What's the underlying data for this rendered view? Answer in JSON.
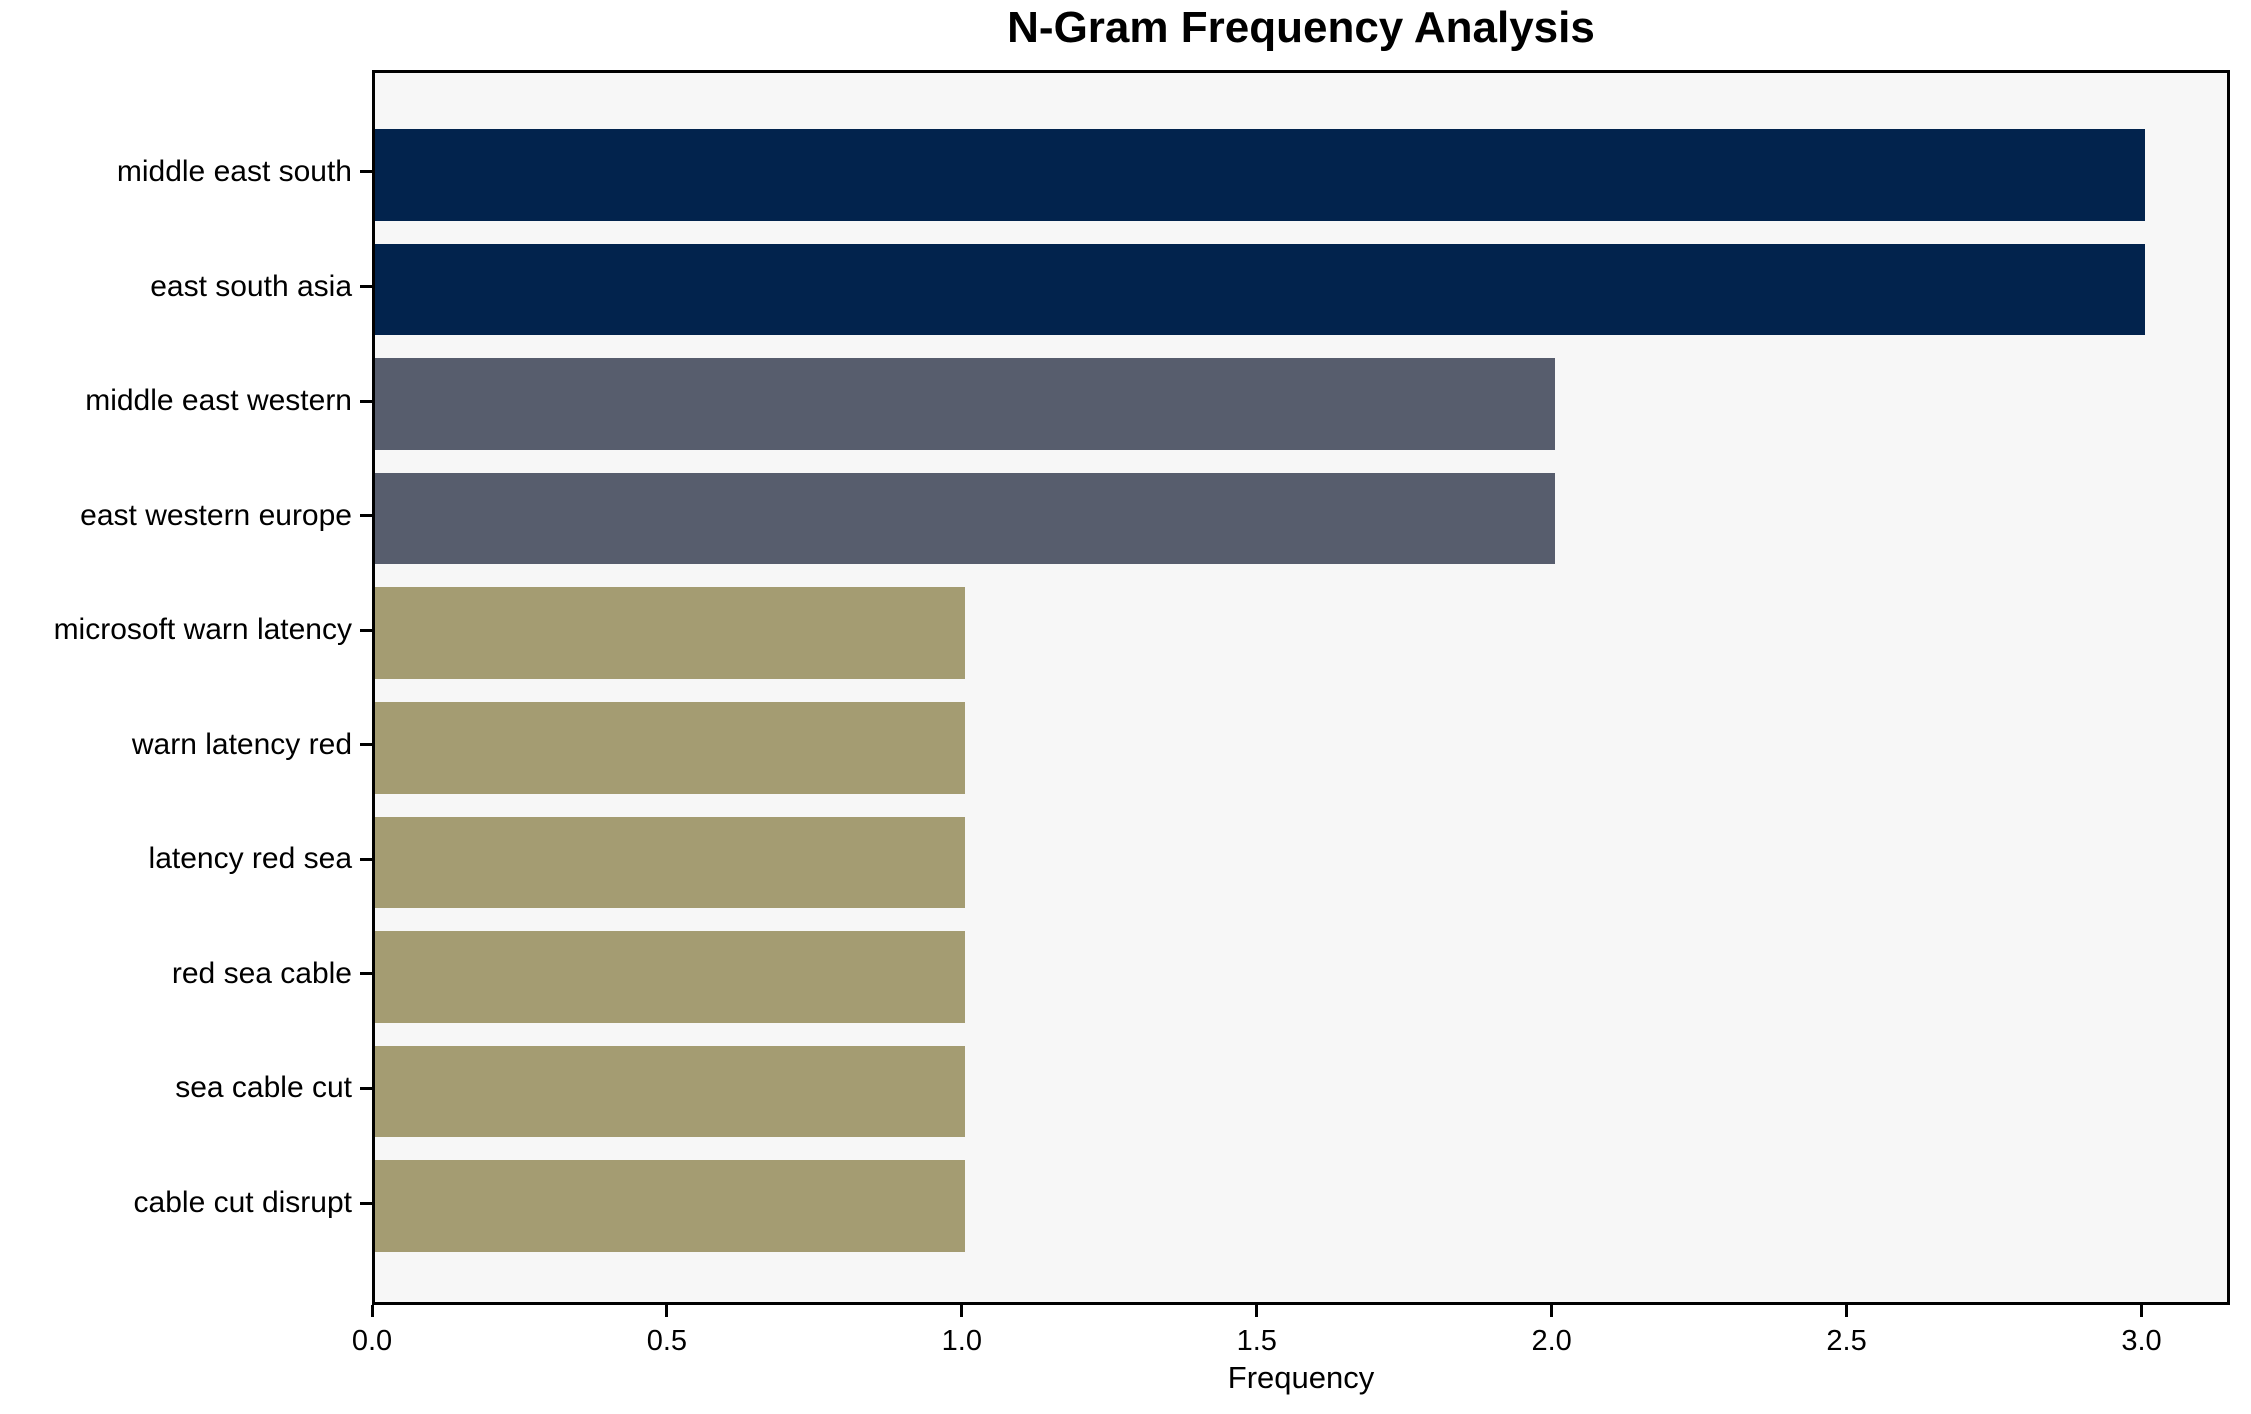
{
  "chart_data": {
    "type": "bar",
    "orientation": "horizontal",
    "title": "N-Gram Frequency Analysis",
    "xlabel": "Frequency",
    "ylabel": "",
    "categories": [
      "middle east south",
      "east south asia",
      "middle east western",
      "east western europe",
      "microsoft warn latency",
      "warn latency red",
      "latency red sea",
      "red sea cable",
      "sea cable cut",
      "cable cut disrupt"
    ],
    "values": [
      3,
      3,
      2,
      2,
      1,
      1,
      1,
      1,
      1,
      1
    ],
    "bar_colors": [
      "#02234d",
      "#02234d",
      "#575d6d",
      "#575d6d",
      "#a49c72",
      "#a49c72",
      "#a49c72",
      "#a49c72",
      "#a49c72",
      "#a49c72"
    ],
    "x_ticks": [
      "0.0",
      "0.5",
      "1.0",
      "1.5",
      "2.0",
      "2.5",
      "3.0"
    ],
    "x_tick_values": [
      0,
      0.5,
      1,
      1.5,
      2,
      2.5,
      3
    ],
    "xlim": [
      0,
      3.15
    ],
    "grid": false,
    "legend": null,
    "colors": {
      "plot_background": "#f7f7f7",
      "figure_background": "#ffffff",
      "spine": "#000000",
      "text": "#000000"
    }
  }
}
